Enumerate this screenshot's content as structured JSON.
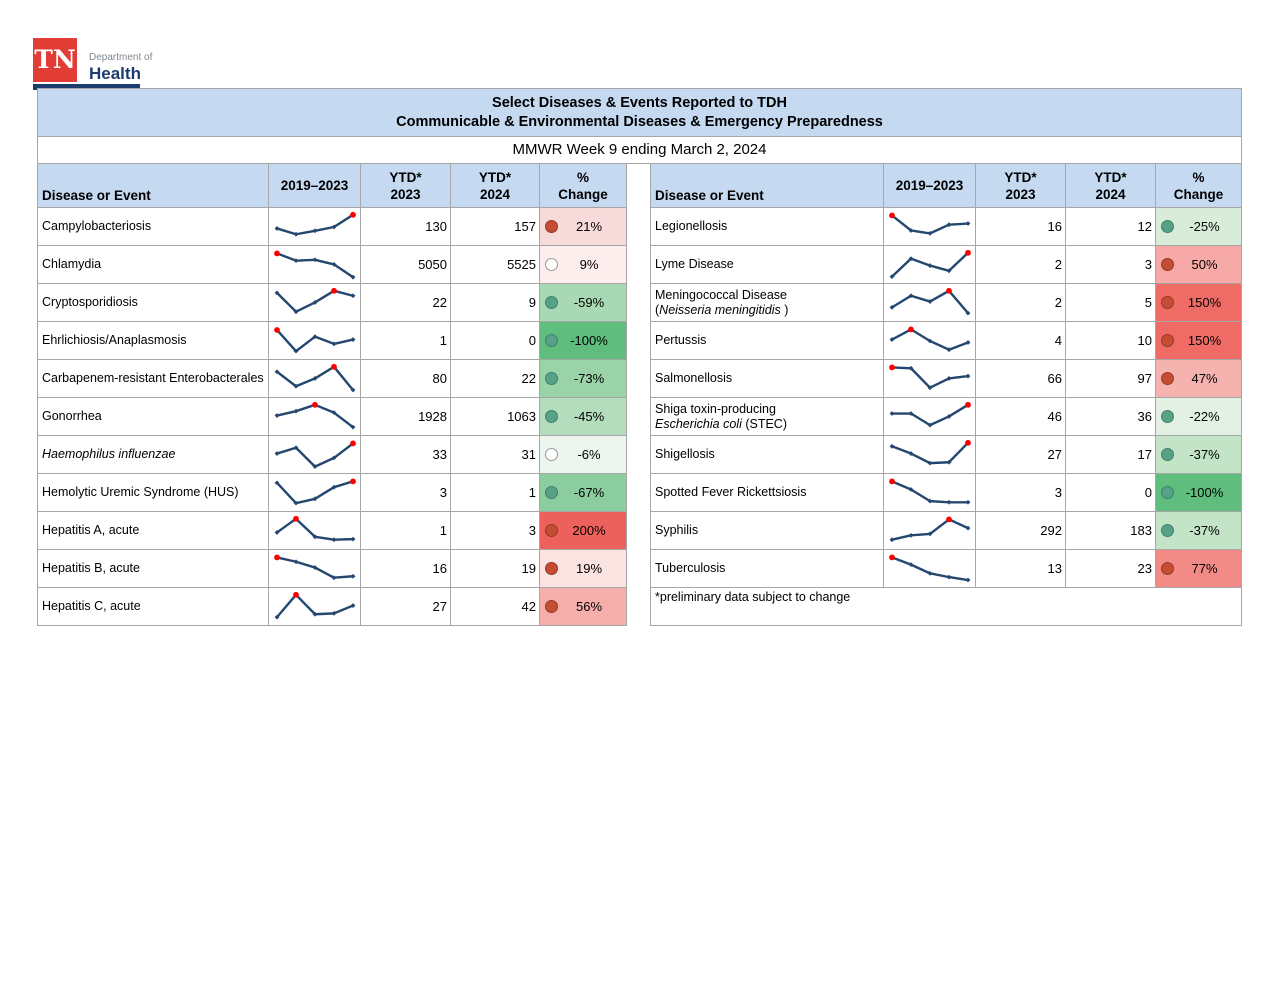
{
  "logo": {
    "abbr": "TN",
    "dept": "Department of",
    "name": "Health"
  },
  "header": {
    "title_line1": "Select Diseases & Events Reported to TDH",
    "title_line2": "Communicable & Environmental Diseases & Emergency Preparedness",
    "subtitle": "MMWR Week 9 ending March 2, 2024"
  },
  "column_headers": {
    "disease": "Disease or Event",
    "trend": "2019–2023",
    "ytd_2023": "YTD*\n2023",
    "ytd_2024": "YTD*\n2024",
    "pct_change": "%\nChange"
  },
  "footnote": "*preliminary data subject to change",
  "colors": {
    "header_fill": "#c5d9f1",
    "border": "#a6a6a6",
    "sparkline": "#24476f",
    "peak_dot": "#ff0000",
    "circle_increase_fill": "#c44d34",
    "circle_increase_border": "#963a26",
    "circle_decrease_fill": "#57a287",
    "circle_decrease_border": "#41806a",
    "circle_neutral_fill": "#ffffff",
    "circle_neutral_border": "#9a9a9a",
    "logo_red": "#e13c35",
    "logo_navy": "#1d3c6e"
  },
  "chart_data": {
    "type": "table",
    "sparkline_years": [
      2019,
      2020,
      2021,
      2022,
      2023
    ],
    "left_rows": [
      {
        "name": [
          {
            "t": "Campylobacteriosis"
          }
        ],
        "trend": {
          "points": [
            45,
            25,
            37,
            50,
            92
          ],
          "peak": 4
        },
        "ytd_2023": "130",
        "ytd_2024": "157",
        "pct": "21%",
        "dir": "up",
        "bg": "#f7dbda"
      },
      {
        "name": [
          {
            "t": "Chlamydia"
          }
        ],
        "trend": {
          "points": [
            90,
            65,
            68,
            52,
            8
          ],
          "peak": 0
        },
        "ytd_2023": "5050",
        "ytd_2024": "5525",
        "pct": "9%",
        "dir": "neutral",
        "bg": "#fdeeed"
      },
      {
        "name": [
          {
            "t": "Cryptosporidiosis"
          }
        ],
        "trend": {
          "points": [
            85,
            20,
            52,
            92,
            75
          ],
          "peak": 3
        },
        "ytd_2023": "22",
        "ytd_2024": "9",
        "pct": "-59%",
        "dir": "down",
        "bg": "#a9d9b4"
      },
      {
        "name": [
          {
            "t": "Ehrlichiosis/Anaplasmosis"
          }
        ],
        "trend": {
          "points": [
            88,
            15,
            65,
            40,
            55
          ],
          "peak": 0
        },
        "ytd_2023": "1",
        "ytd_2024": "0",
        "pct": "-100%",
        "dir": "down",
        "bg": "#5fbe7d"
      },
      {
        "name": [
          {
            "t": "Carbapenem-resistant Enterobacterales"
          }
        ],
        "trend": {
          "points": [
            75,
            25,
            52,
            92,
            12
          ],
          "peak": 3
        },
        "ytd_2023": "80",
        "ytd_2024": "22",
        "pct": "-73%",
        "dir": "down",
        "bg": "#9bd3a9"
      },
      {
        "name": [
          {
            "t": "Gonorrhea"
          }
        ],
        "trend": {
          "points": [
            55,
            70,
            92,
            65,
            15
          ],
          "peak": 2
        },
        "ytd_2023": "1928",
        "ytd_2024": "1063",
        "pct": "-45%",
        "dir": "down",
        "bg": "#b3ddbd"
      },
      {
        "name": [
          {
            "t": "Haemophilus influenzae",
            "i": true
          }
        ],
        "trend": {
          "points": [
            55,
            75,
            10,
            40,
            90
          ],
          "peak": 4
        },
        "ytd_2023": "33",
        "ytd_2024": "31",
        "pct": "-6%",
        "dir": "neutral",
        "bg": "#ecf6ee"
      },
      {
        "name": [
          {
            "t": "Hemolytic Uremic Syndrome (HUS)"
          }
        ],
        "trend": {
          "points": [
            85,
            15,
            30,
            70,
            90
          ],
          "peak": 4
        },
        "ytd_2023": "3",
        "ytd_2024": "1",
        "pct": "-67%",
        "dir": "down",
        "bg": "#8ccd9f"
      },
      {
        "name": [
          {
            "t": "Hepatitis A, acute"
          }
        ],
        "trend": {
          "points": [
            45,
            92,
            30,
            20,
            22
          ],
          "peak": 1
        },
        "ytd_2023": "1",
        "ytd_2024": "3",
        "pct": "200%",
        "dir": "up",
        "bg": "#ec615c"
      },
      {
        "name": [
          {
            "t": "Hepatitis B, acute"
          }
        ],
        "trend": {
          "points": [
            90,
            75,
            55,
            20,
            25
          ],
          "peak": 0
        },
        "ytd_2023": "16",
        "ytd_2024": "19",
        "pct": "19%",
        "dir": "up",
        "bg": "#fbe3e2"
      },
      {
        "name": [
          {
            "t": "Hepatitis C, acute"
          }
        ],
        "trend": {
          "points": [
            15,
            92,
            25,
            28,
            55
          ],
          "peak": 1
        },
        "ytd_2023": "27",
        "ytd_2024": "42",
        "pct": "56%",
        "dir": "up",
        "bg": "#f5aeaa"
      }
    ],
    "right_rows": [
      {
        "name": [
          {
            "t": "Legionellosis"
          }
        ],
        "trend": {
          "points": [
            90,
            38,
            28,
            58,
            62
          ],
          "peak": 0
        },
        "ytd_2023": "16",
        "ytd_2024": "12",
        "pct": "-25%",
        "dir": "down",
        "bg": "#d9ecd9"
      },
      {
        "name": [
          {
            "t": "Lyme Disease"
          }
        ],
        "trend": {
          "points": [
            10,
            72,
            48,
            30,
            92
          ],
          "peak": 4
        },
        "ytd_2023": "2",
        "ytd_2024": "3",
        "pct": "50%",
        "dir": "up",
        "bg": "#f6a9a6"
      },
      {
        "name": [
          {
            "t": "Meningococcal Disease"
          },
          {
            "t": "(",
            "br": true
          },
          {
            "t": "Neisseria meningitidis",
            "i": true
          },
          {
            "t": " )"
          }
        ],
        "trend": {
          "points": [
            35,
            75,
            55,
            92,
            15
          ],
          "peak": 3
        },
        "ytd_2023": "2",
        "ytd_2024": "5",
        "pct": "150%",
        "dir": "up",
        "bg": "#ee6b66"
      },
      {
        "name": [
          {
            "t": "Pertussis"
          }
        ],
        "trend": {
          "points": [
            55,
            90,
            50,
            20,
            45
          ],
          "peak": 1
        },
        "ytd_2023": "4",
        "ytd_2024": "10",
        "pct": "150%",
        "dir": "up",
        "bg": "#ee6b66"
      },
      {
        "name": [
          {
            "t": "Salmonellosis"
          }
        ],
        "trend": {
          "points": [
            90,
            87,
            20,
            52,
            60
          ],
          "peak": 0
        },
        "ytd_2023": "66",
        "ytd_2024": "97",
        "pct": "47%",
        "dir": "up",
        "bg": "#f5b3af"
      },
      {
        "name": [
          {
            "t": "Shiga toxin-producing"
          },
          {
            "t": "Escherichia coli",
            "i": true,
            "br": true
          },
          {
            "t": " (STEC)"
          }
        ],
        "trend": {
          "points": [
            62,
            62,
            22,
            52,
            92
          ],
          "peak": 4
        },
        "ytd_2023": "46",
        "ytd_2024": "36",
        "pct": "-22%",
        "dir": "down",
        "bg": "#e3f1e4"
      },
      {
        "name": [
          {
            "t": "Shigellosis"
          }
        ],
        "trend": {
          "points": [
            80,
            55,
            22,
            25,
            92
          ],
          "peak": 4
        },
        "ytd_2023": "27",
        "ytd_2024": "17",
        "pct": "-37%",
        "dir": "down",
        "bg": "#c4e4c8"
      },
      {
        "name": [
          {
            "t": "Spotted Fever Rickettsiosis"
          }
        ],
        "trend": {
          "points": [
            90,
            62,
            22,
            18,
            18
          ],
          "peak": 0
        },
        "ytd_2023": "3",
        "ytd_2024": "0",
        "pct": "-100%",
        "dir": "down",
        "bg": "#5fbe7d"
      },
      {
        "name": [
          {
            "t": "Syphilis"
          }
        ],
        "trend": {
          "points": [
            20,
            35,
            40,
            90,
            60
          ],
          "peak": 3
        },
        "ytd_2023": "292",
        "ytd_2024": "183",
        "pct": "-37%",
        "dir": "down",
        "bg": "#c4e4c8"
      },
      {
        "name": [
          {
            "t": "Tuberculosis"
          }
        ],
        "trend": {
          "points": [
            90,
            65,
            35,
            22,
            12
          ],
          "peak": 0
        },
        "ytd_2023": "13",
        "ytd_2024": "23",
        "pct": "77%",
        "dir": "up",
        "bg": "#f28b85"
      }
    ]
  }
}
